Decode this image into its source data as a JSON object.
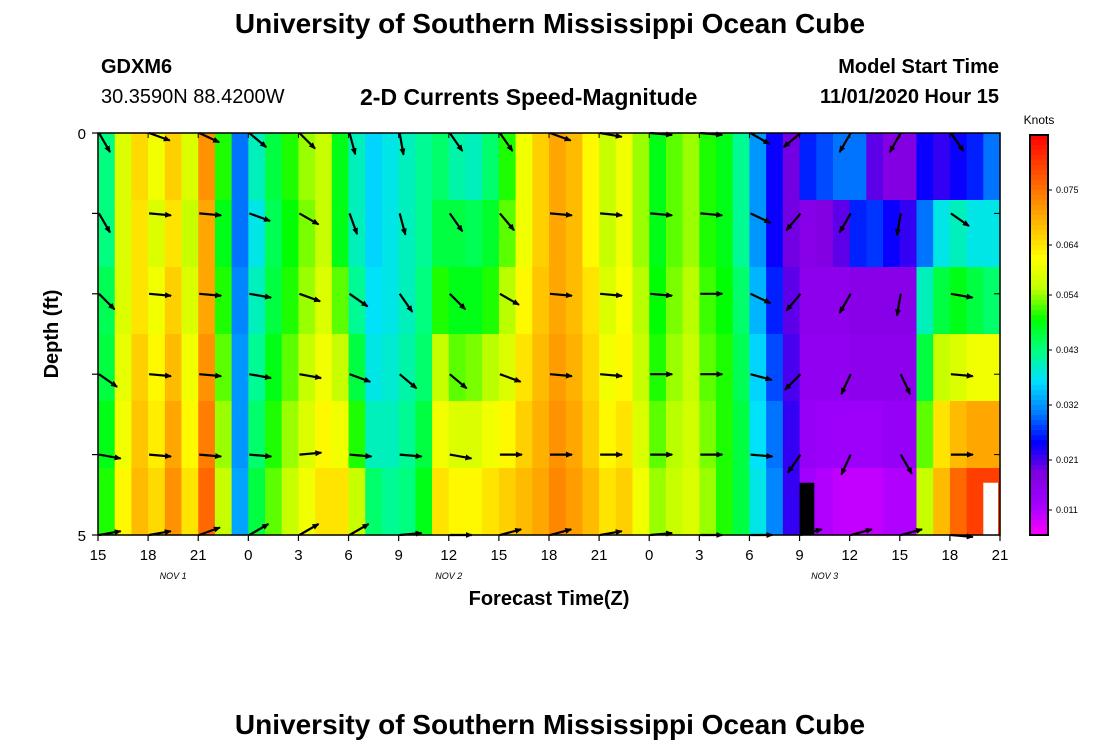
{
  "header": {
    "title_top": "University of Southern Mississippi Ocean Cube",
    "title_bottom": "University of Southern Mississippi Ocean Cube",
    "station_id": "GDXM6",
    "station_coords": "30.3590N 88.4200W",
    "chart_title": "2-D Currents Speed-Magnitude",
    "model_label": "Model Start Time",
    "model_time": "11/01/2020 Hour 15"
  },
  "colors": {
    "arrow": "#000000",
    "colormap": [
      "#ff00ff",
      "#a000ff",
      "#8000e0",
      "#0000ff",
      "#0080ff",
      "#00e0ff",
      "#00ff80",
      "#00ff00",
      "#c0ff00",
      "#ffff00",
      "#ffc000",
      "#ff8000",
      "#ff4000",
      "#ff0000"
    ]
  },
  "chart_data": {
    "type": "heatmap",
    "xlabel": "Forecast Time(Z)",
    "ylabel": "Depth (ft)",
    "x_tick_labels": [
      "15",
      "18",
      "21",
      "0",
      "3",
      "6",
      "9",
      "12",
      "15",
      "18",
      "21",
      "0",
      "3",
      "6",
      "9",
      "12",
      "15",
      "18",
      "21"
    ],
    "x_hours": [
      0,
      3,
      6,
      9,
      12,
      15,
      18,
      21,
      24,
      27,
      30,
      33,
      36,
      39,
      42,
      45,
      48,
      51,
      54
    ],
    "day_labels": [
      {
        "label": "NOV 1",
        "hour": 4.5
      },
      {
        "label": "NOV 2",
        "hour": 21
      },
      {
        "label": "NOV 3",
        "hour": 43.5
      }
    ],
    "y_tick_labels": [
      "0",
      "5"
    ],
    "ylim": [
      0,
      5
    ],
    "xlim_hours": [
      0,
      54
    ],
    "colorbar_title": "Knots",
    "colorbar_ticks": [
      "0.011",
      "0.021",
      "0.032",
      "0.043",
      "0.054",
      "0.064",
      "0.075"
    ],
    "colorbar_range": [
      0.006,
      0.086
    ],
    "depth_levels": [
      0.5,
      1.5,
      2.5,
      3.5,
      4.5
    ],
    "time_step_hours": 3,
    "speed_by_hour": [
      {
        "hour": 0,
        "speeds": [
          0.043,
          0.043,
          0.045,
          0.046,
          0.048,
          0.05
        ]
      },
      {
        "hour": 1,
        "speeds": [
          0.058,
          0.058,
          0.058,
          0.059,
          0.06,
          0.062
        ]
      },
      {
        "hour": 2,
        "speeds": [
          0.065,
          0.064,
          0.064,
          0.066,
          0.067,
          0.068
        ]
      },
      {
        "hour": 3,
        "speeds": [
          0.06,
          0.058,
          0.06,
          0.062,
          0.063,
          0.065
        ]
      },
      {
        "hour": 4,
        "speeds": [
          0.066,
          0.064,
          0.066,
          0.068,
          0.07,
          0.072
        ]
      },
      {
        "hour": 5,
        "speeds": [
          0.058,
          0.056,
          0.058,
          0.06,
          0.062,
          0.064
        ]
      },
      {
        "hour": 6,
        "speeds": [
          0.072,
          0.07,
          0.07,
          0.072,
          0.074,
          0.076
        ]
      },
      {
        "hour": 7,
        "speeds": [
          0.05,
          0.048,
          0.05,
          0.052,
          0.054,
          0.056
        ]
      },
      {
        "hour": 8,
        "speeds": [
          0.03,
          0.03,
          0.031,
          0.032,
          0.032,
          0.033
        ]
      },
      {
        "hour": 9,
        "speeds": [
          0.04,
          0.038,
          0.04,
          0.042,
          0.044,
          0.046
        ]
      },
      {
        "hour": 10,
        "speeds": [
          0.046,
          0.045,
          0.046,
          0.048,
          0.05,
          0.052
        ]
      },
      {
        "hour": 11,
        "speeds": [
          0.05,
          0.049,
          0.05,
          0.052,
          0.054,
          0.056
        ]
      },
      {
        "hour": 12,
        "speeds": [
          0.054,
          0.053,
          0.054,
          0.056,
          0.058,
          0.06
        ]
      },
      {
        "hour": 13,
        "speeds": [
          0.056,
          0.056,
          0.058,
          0.06,
          0.062,
          0.064
        ]
      },
      {
        "hour": 14,
        "speeds": [
          0.048,
          0.048,
          0.052,
          0.056,
          0.06,
          0.064
        ]
      },
      {
        "hour": 15,
        "speeds": [
          0.04,
          0.04,
          0.042,
          0.046,
          0.05,
          0.056
        ]
      },
      {
        "hour": 16,
        "speeds": [
          0.036,
          0.036,
          0.037,
          0.038,
          0.04,
          0.044
        ]
      },
      {
        "hour": 17,
        "speeds": [
          0.038,
          0.038,
          0.038,
          0.039,
          0.04,
          0.042
        ]
      },
      {
        "hour": 18,
        "speeds": [
          0.04,
          0.04,
          0.04,
          0.041,
          0.042,
          0.043
        ]
      },
      {
        "hour": 19,
        "speeds": [
          0.042,
          0.042,
          0.043,
          0.044,
          0.046,
          0.048
        ]
      },
      {
        "hour": 20,
        "speeds": [
          0.044,
          0.046,
          0.05,
          0.056,
          0.06,
          0.064
        ]
      },
      {
        "hour": 21,
        "speeds": [
          0.041,
          0.046,
          0.048,
          0.052,
          0.058,
          0.062
        ]
      },
      {
        "hour": 22,
        "speeds": [
          0.04,
          0.045,
          0.048,
          0.053,
          0.058,
          0.062
        ]
      },
      {
        "hour": 23,
        "speeds": [
          0.044,
          0.047,
          0.05,
          0.055,
          0.06,
          0.064
        ]
      },
      {
        "hour": 24,
        "speeds": [
          0.05,
          0.052,
          0.055,
          0.058,
          0.062,
          0.066
        ]
      },
      {
        "hour": 25,
        "speeds": [
          0.06,
          0.06,
          0.062,
          0.064,
          0.066,
          0.068
        ]
      },
      {
        "hour": 26,
        "speeds": [
          0.066,
          0.066,
          0.067,
          0.068,
          0.069,
          0.07
        ]
      },
      {
        "hour": 27,
        "speeds": [
          0.07,
          0.07,
          0.07,
          0.071,
          0.072,
          0.073
        ]
      },
      {
        "hour": 28,
        "speeds": [
          0.068,
          0.068,
          0.068,
          0.069,
          0.07,
          0.071
        ]
      },
      {
        "hour": 29,
        "speeds": [
          0.062,
          0.062,
          0.064,
          0.065,
          0.066,
          0.068
        ]
      },
      {
        "hour": 30,
        "speeds": [
          0.056,
          0.056,
          0.058,
          0.06,
          0.062,
          0.064
        ]
      },
      {
        "hour": 31,
        "speeds": [
          0.06,
          0.06,
          0.061,
          0.062,
          0.064,
          0.066
        ]
      },
      {
        "hour": 32,
        "speeds": [
          0.054,
          0.054,
          0.055,
          0.056,
          0.058,
          0.06
        ]
      },
      {
        "hour": 33,
        "speeds": [
          0.048,
          0.048,
          0.049,
          0.05,
          0.052,
          0.054
        ]
      },
      {
        "hour": 34,
        "speeds": [
          0.052,
          0.052,
          0.053,
          0.054,
          0.055,
          0.056
        ]
      },
      {
        "hour": 35,
        "speeds": [
          0.054,
          0.054,
          0.055,
          0.056,
          0.057,
          0.058
        ]
      },
      {
        "hour": 36,
        "speeds": [
          0.05,
          0.05,
          0.051,
          0.052,
          0.053,
          0.054
        ]
      },
      {
        "hour": 37,
        "speeds": [
          0.048,
          0.048,
          0.049,
          0.05,
          0.05,
          0.05
        ]
      },
      {
        "hour": 38,
        "speeds": [
          0.042,
          0.042,
          0.044,
          0.045,
          0.046,
          0.046
        ]
      },
      {
        "hour": 39,
        "speeds": [
          0.032,
          0.032,
          0.034,
          0.036,
          0.037,
          0.038
        ]
      },
      {
        "hour": 40,
        "speeds": [
          0.024,
          0.024,
          0.026,
          0.028,
          0.03,
          0.031
        ]
      },
      {
        "hour": 41,
        "speeds": [
          0.019,
          0.019,
          0.02,
          0.021,
          0.022,
          0.022
        ]
      },
      {
        "hour": 42,
        "speeds": [
          0.026,
          0.017,
          0.016,
          0.015,
          0.014,
          0.012
        ]
      },
      {
        "hour": 43,
        "speeds": [
          0.028,
          0.018,
          0.016,
          0.015,
          0.013,
          0.011
        ]
      },
      {
        "hour": 44,
        "speeds": [
          0.03,
          0.02,
          0.016,
          0.015,
          0.013,
          0.01
        ]
      },
      {
        "hour": 45,
        "speeds": [
          0.03,
          0.026,
          0.017,
          0.016,
          0.013,
          0.01
        ]
      },
      {
        "hour": 46,
        "speeds": [
          0.02,
          0.027,
          0.017,
          0.016,
          0.013,
          0.01
        ]
      },
      {
        "hour": 47,
        "speeds": [
          0.018,
          0.024,
          0.017,
          0.016,
          0.014,
          0.011
        ]
      },
      {
        "hour": 48,
        "speeds": [
          0.018,
          0.022,
          0.017,
          0.016,
          0.014,
          0.011
        ]
      },
      {
        "hour": 49,
        "speeds": [
          0.024,
          0.03,
          0.04,
          0.046,
          0.052,
          0.056
        ]
      },
      {
        "hour": 50,
        "speeds": [
          0.022,
          0.038,
          0.046,
          0.056,
          0.064,
          0.068
        ]
      },
      {
        "hour": 51,
        "speeds": [
          0.024,
          0.04,
          0.048,
          0.058,
          0.068,
          0.076
        ]
      },
      {
        "hour": 52,
        "speeds": [
          0.026,
          0.038,
          0.046,
          0.06,
          0.07,
          0.08
        ]
      },
      {
        "hour": 53,
        "speeds": [
          0.03,
          0.038,
          0.044,
          0.06,
          0.07,
          0.08
        ]
      }
    ],
    "direction_by_hour": [
      {
        "hour": 0,
        "directions": [
          150,
          150,
          135,
          125,
          100,
          80
        ]
      },
      {
        "hour": 3,
        "directions": [
          110,
          95,
          95,
          95,
          95,
          80
        ]
      },
      {
        "hour": 6,
        "directions": [
          115,
          95,
          95,
          95,
          95,
          70
        ]
      },
      {
        "hour": 9,
        "directions": [
          130,
          110,
          100,
          100,
          95,
          60
        ]
      },
      {
        "hour": 12,
        "directions": [
          135,
          120,
          110,
          100,
          85,
          60
        ]
      },
      {
        "hour": 15,
        "directions": [
          165,
          160,
          125,
          110,
          95,
          60
        ]
      },
      {
        "hour": 18,
        "directions": [
          170,
          165,
          145,
          130,
          95,
          85
        ]
      },
      {
        "hour": 21,
        "directions": [
          145,
          145,
          135,
          130,
          100,
          90
        ]
      },
      {
        "hour": 24,
        "directions": [
          145,
          140,
          120,
          110,
          90,
          75
        ]
      },
      {
        "hour": 27,
        "directions": [
          110,
          95,
          95,
          95,
          90,
          75
        ]
      },
      {
        "hour": 30,
        "directions": [
          100,
          95,
          95,
          95,
          90,
          80
        ]
      },
      {
        "hour": 33,
        "directions": [
          95,
          95,
          95,
          90,
          90,
          85
        ]
      },
      {
        "hour": 36,
        "directions": [
          95,
          95,
          90,
          90,
          90,
          90
        ]
      },
      {
        "hour": 39,
        "directions": [
          120,
          115,
          115,
          105,
          95,
          90
        ]
      },
      {
        "hour": 42,
        "directions": [
          230,
          220,
          220,
          225,
          215,
          0
        ]
      },
      {
        "hour": 45,
        "directions": [
          210,
          210,
          210,
          205,
          205,
          0
        ]
      },
      {
        "hour": 48,
        "directions": [
          210,
          190,
          190,
          155,
          150,
          0
        ]
      },
      {
        "hour": 51,
        "directions": [
          145,
          125,
          100,
          95,
          90,
          95
        ]
      }
    ],
    "missing_cells": [
      {
        "hour": 42,
        "depth": 4.75,
        "note_color": "#000000"
      },
      {
        "hour": 53,
        "depth": 4.75,
        "note_color": "#ffffff"
      }
    ]
  }
}
